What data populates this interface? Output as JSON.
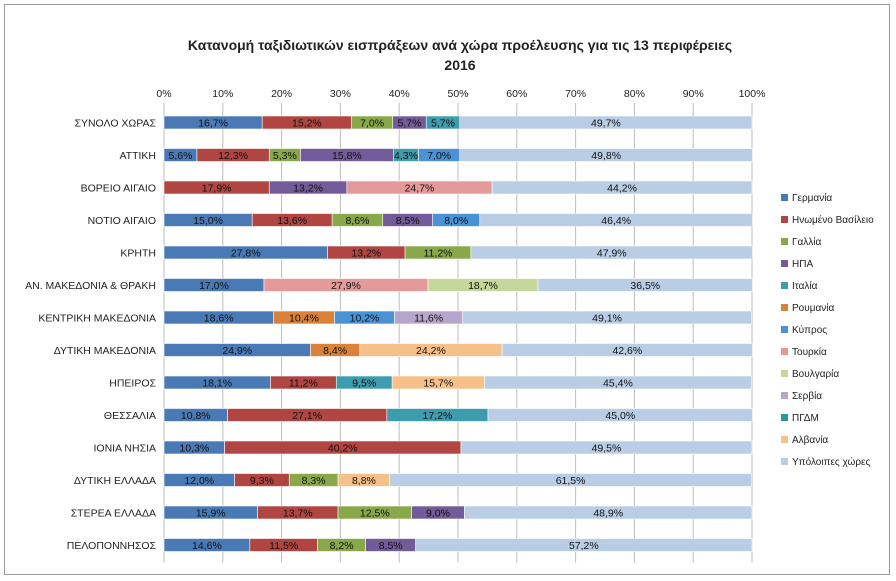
{
  "chart_data": {
    "type": "bar",
    "orientation": "horizontal",
    "stacked": "percent",
    "title": "Κατανομή ταξιδιωτικών  εισπράξεων ανά χώρα προέλευσης για τις 13 περιφέρειες",
    "subtitle": "2016",
    "xlim": [
      0,
      100
    ],
    "x_ticks": [
      "0%",
      "10%",
      "20%",
      "30%",
      "40%",
      "50%",
      "60%",
      "70%",
      "80%",
      "90%",
      "100%"
    ],
    "grid": true,
    "legend_position": "right",
    "categories": [
      "ΣΥΝΟΛΟ ΧΩΡΑΣ",
      "ΑΤΤΙΚΗ",
      "ΒΟΡΕΙΟ ΑΙΓΑΙΟ",
      "ΝΟΤΙΟ ΑΙΓΑΙΟ",
      "ΚΡΗΤΗ",
      "ΑΝ. ΜΑΚΕΔΟΝΙΑ & ΘΡΑΚΗ",
      "ΚΕΝΤΡΙΚΗ ΜΑΚΕΔΟΝΙΑ",
      "ΔΥΤΙΚΗ ΜΑΚΕΔΟΝΙΑ",
      "ΗΠΕΙΡΟΣ",
      "ΘΕΣΣΑΛΙΑ",
      "ΙΟΝΙΑ ΝΗΣΙΑ",
      "ΔΥΤΙΚΗ ΕΛΛΑΔΑ",
      "ΣΤΕΡΕΑ ΕΛΛΑΔΑ",
      "ΠΕΛΟΠΟΝΝΗΣΟΣ"
    ],
    "series": [
      {
        "name": "Γερμανία",
        "color": "#4a7ab5",
        "values": [
          16.7,
          5.6,
          0,
          15.0,
          27.8,
          17.0,
          18.6,
          24.9,
          18.1,
          10.8,
          10.3,
          12.0,
          15.9,
          14.6
        ],
        "labels": [
          "16,7%",
          "5,6%",
          "",
          "15,0%",
          "27,8%",
          "17,0%",
          "18,6%",
          "24,9%",
          "18,1%",
          "10,8%",
          "10,3%",
          "12,0%",
          "15,9%",
          "14,6%"
        ]
      },
      {
        "name": "Ηνωμένο Βασίλειο",
        "color": "#b04542",
        "values": [
          15.2,
          12.3,
          17.9,
          13.6,
          13.2,
          0,
          0,
          0,
          11.2,
          27.1,
          40.2,
          9.3,
          13.7,
          11.5
        ],
        "labels": [
          "15,2%",
          "12,3%",
          "17,9%",
          "13,6%",
          "13,2%",
          "",
          "",
          "",
          "11,2%",
          "27,1%",
          "40,2%",
          "9,3%",
          "13,7%",
          "11,5%"
        ]
      },
      {
        "name": "Γαλλία",
        "color": "#88a84a",
        "values": [
          7.0,
          5.3,
          0,
          8.6,
          11.2,
          0,
          0,
          0,
          0,
          0,
          0,
          8.3,
          12.5,
          8.2
        ],
        "labels": [
          "7,0%",
          "5,3%",
          "",
          "8,6%",
          "11,2%",
          "",
          "",
          "",
          "",
          "",
          "",
          "8,3%",
          "12,5%",
          "8,2%"
        ]
      },
      {
        "name": "ΗΠΑ",
        "color": "#735a98",
        "values": [
          5.7,
          15.8,
          13.2,
          8.5,
          0,
          0,
          0,
          0,
          0,
          0,
          0,
          0,
          9.0,
          8.5
        ],
        "labels": [
          "5,7%",
          "15,8%",
          "13,2%",
          "8,5%",
          "",
          "",
          "",
          "",
          "",
          "",
          "",
          "",
          "9,0%",
          "8,5%"
        ]
      },
      {
        "name": "Ιταλία",
        "color": "#3d9cae",
        "values": [
          5.7,
          4.3,
          0,
          0,
          0,
          0,
          0,
          0,
          9.5,
          17.2,
          0,
          0,
          0,
          0
        ],
        "labels": [
          "5,7%",
          "4,3%",
          "",
          "",
          "",
          "",
          "",
          "",
          "9,5%",
          "17,2%",
          "",
          "",
          "",
          ""
        ]
      },
      {
        "name": "Ρουμανία",
        "color": "#d9833a",
        "values": [
          0,
          0,
          0,
          0,
          0,
          0,
          10.4,
          8.4,
          0,
          0,
          0,
          0,
          0,
          0
        ],
        "labels": [
          "",
          "",
          "",
          "",
          "",
          "",
          "10,4%",
          "8,4%",
          "",
          "",
          "",
          "",
          "",
          ""
        ]
      },
      {
        "name": "Κύπρος",
        "color": "#4a92d6",
        "values": [
          0,
          7.0,
          0,
          8.0,
          0,
          0,
          10.2,
          0,
          0,
          0,
          0,
          0,
          0,
          0
        ],
        "labels": [
          "",
          "7,0%",
          "",
          "8,0%",
          "",
          "",
          "10,2%",
          "",
          "",
          "",
          "",
          "",
          "",
          ""
        ]
      },
      {
        "name": "Τουρκία",
        "color": "#e59a9a",
        "values": [
          0,
          0,
          24.7,
          0,
          0,
          27.9,
          0,
          0,
          0,
          0,
          0,
          0,
          0,
          0
        ],
        "labels": [
          "",
          "",
          "24,7%",
          "",
          "",
          "27,9%",
          "",
          "",
          "",
          "",
          "",
          "",
          "",
          ""
        ]
      },
      {
        "name": "Βουλγαρία",
        "color": "#c5d79a",
        "values": [
          0,
          0,
          0,
          0,
          0,
          18.7,
          0,
          0,
          0,
          0,
          0,
          0,
          0,
          0
        ],
        "labels": [
          "",
          "",
          "",
          "",
          "",
          "18,7%",
          "",
          "",
          "",
          "",
          "",
          "",
          "",
          ""
        ]
      },
      {
        "name": "Σερβία",
        "color": "#b6a6cc",
        "values": [
          0,
          0,
          0,
          0,
          0,
          0,
          11.6,
          0,
          0,
          0,
          0,
          0,
          0,
          0
        ],
        "labels": [
          "",
          "",
          "",
          "",
          "",
          "",
          "11,6%",
          "",
          "",
          "",
          "",
          "",
          "",
          ""
        ]
      },
      {
        "name": "ΠΓΔΜ",
        "color": "#249a9a",
        "values": [
          0,
          0,
          0,
          0,
          0,
          0,
          0,
          0,
          0,
          0,
          0,
          0,
          0,
          0
        ],
        "labels": [
          "",
          "",
          "",
          "",
          "",
          "",
          "",
          "",
          "",
          "",
          "",
          "",
          "",
          ""
        ]
      },
      {
        "name": "Αλβανία",
        "color": "#f6c08a",
        "values": [
          0,
          0,
          0,
          0,
          0,
          0,
          0,
          24.2,
          15.7,
          0,
          0,
          8.8,
          0,
          0
        ],
        "labels": [
          "",
          "",
          "",
          "",
          "",
          "",
          "",
          "24,2%",
          "15,7%",
          "",
          "",
          "8,8%",
          "",
          ""
        ]
      },
      {
        "name": "Υπόλοιπες χώρες",
        "color": "#b9cde5",
        "values": [
          49.7,
          49.8,
          44.2,
          46.4,
          47.9,
          36.5,
          49.1,
          42.6,
          45.4,
          45.0,
          49.5,
          61.5,
          48.9,
          57.2
        ],
        "labels": [
          "49,7%",
          "49,8%",
          "44,2%",
          "46,4%",
          "47,9%",
          "36,5%",
          "49,1%",
          "42,6%",
          "45,4%",
          "45,0%",
          "49,5%",
          "61,5%",
          "48,9%",
          "57,2%"
        ]
      }
    ]
  }
}
